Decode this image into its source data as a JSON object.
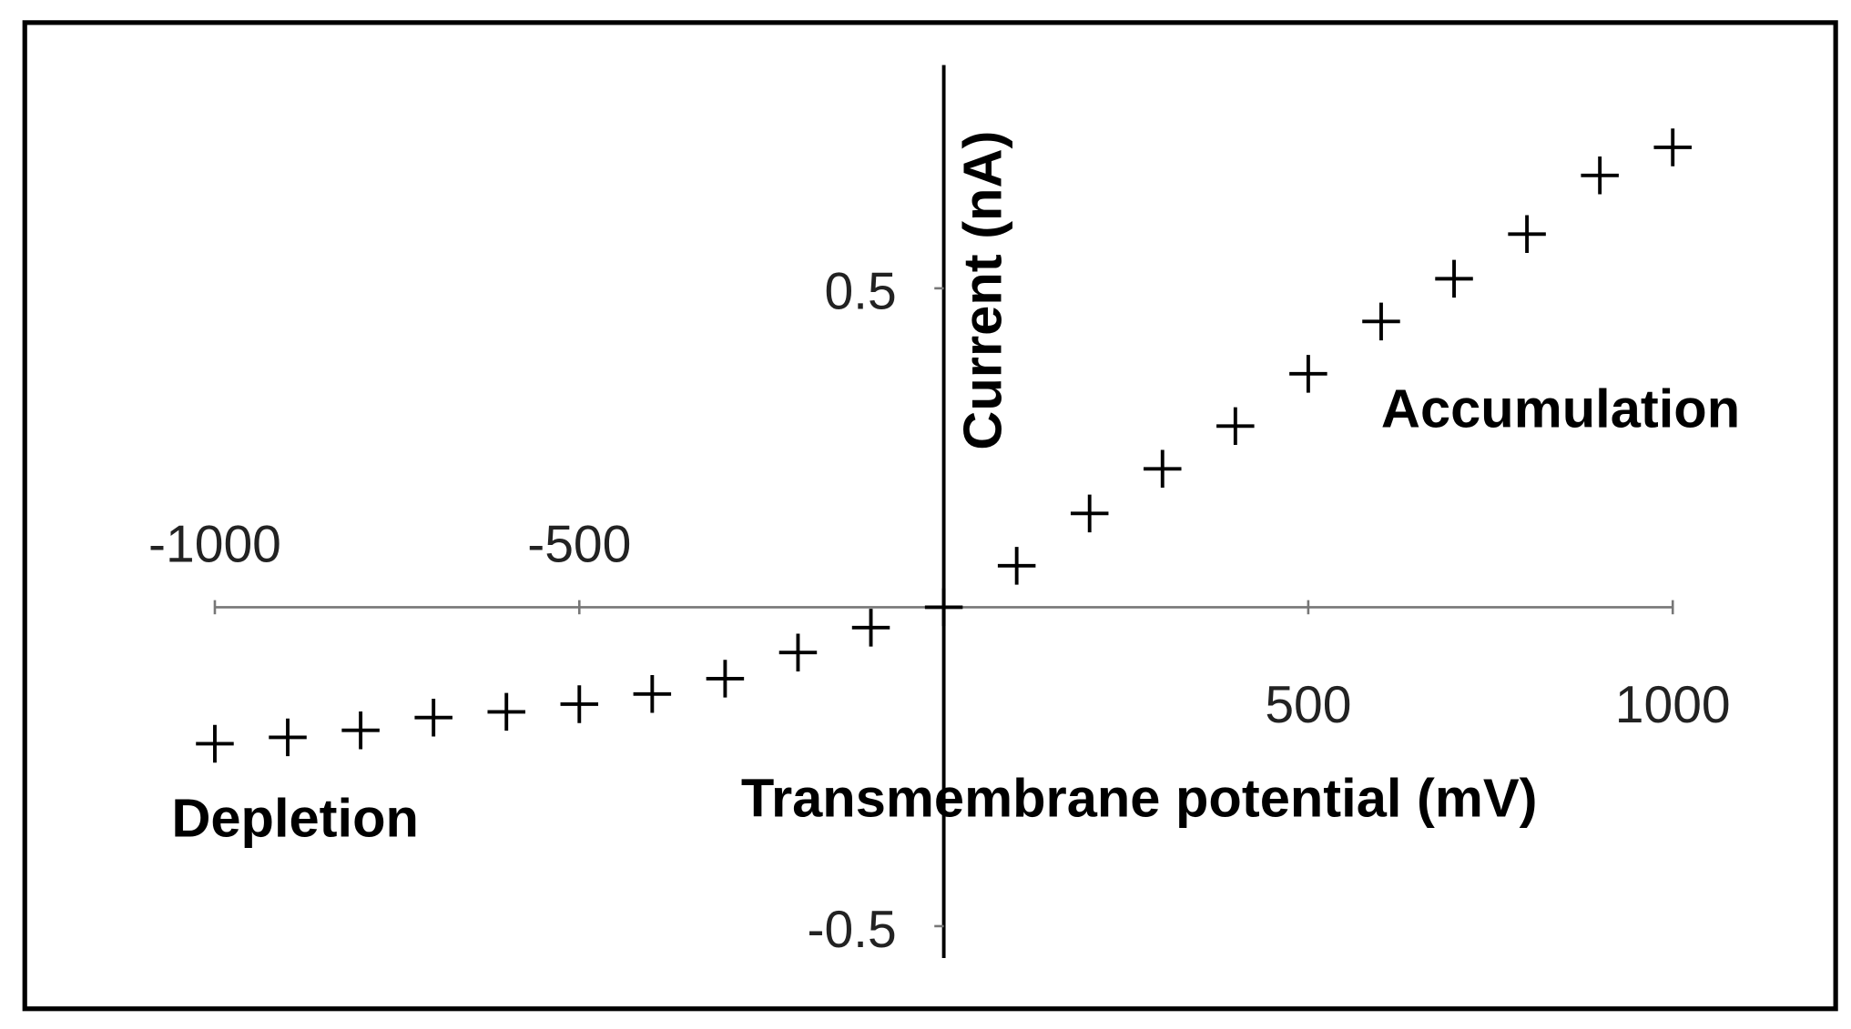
{
  "chart_data": {
    "type": "scatter",
    "x_label": "Transmembrane potential (mV)",
    "y_label": "Current (nA)",
    "annotations": [
      "Accumulation",
      "Depletion"
    ],
    "x": [
      -1000,
      -900,
      -800,
      -700,
      -600,
      -500,
      -400,
      -300,
      -200,
      -100,
      0,
      100,
      200,
      300,
      400,
      500,
      600,
      700,
      800,
      900,
      1000
    ],
    "values": [
      -0.214,
      -0.204,
      -0.193,
      -0.173,
      -0.164,
      -0.152,
      -0.136,
      -0.112,
      -0.071,
      -0.032,
      0.0,
      0.065,
      0.147,
      0.217,
      0.284,
      0.366,
      0.448,
      0.515,
      0.585,
      0.677,
      0.721
    ],
    "color": "#000000",
    "xlim": [
      -1000,
      1000
    ],
    "xticks": [
      -1000,
      -500,
      500,
      1000
    ],
    "ylim": [
      -0.55,
      0.85
    ],
    "yticks": [
      -0.5,
      0.5
    ],
    "grid": false
  }
}
